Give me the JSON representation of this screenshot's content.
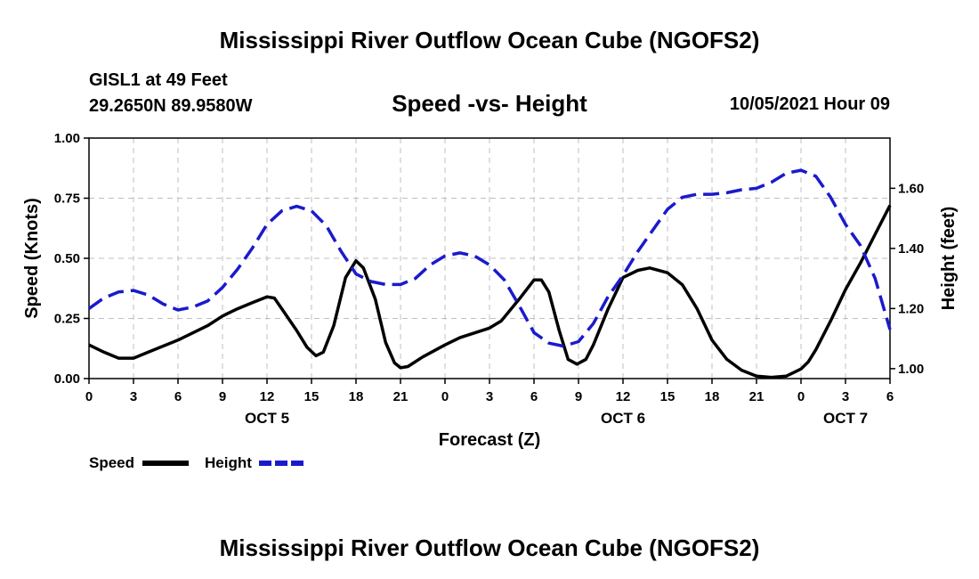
{
  "header": {
    "title": "Mississippi River Outflow Ocean Cube (NGOFS2)",
    "station_name": "GISL1 at 49 Feet",
    "station_coords": "29.2650N  89.9580W",
    "chart_subtitle": "Speed -vs- Height",
    "timestamp": "10/05/2021 Hour 09"
  },
  "footer": {
    "title": "Mississippi River Outflow Ocean Cube (NGOFS2)"
  },
  "colors": {
    "speed": "#000000",
    "height": "#1a1acc",
    "grid": "#bfbfbf"
  },
  "chart_data": {
    "type": "line",
    "title": "Speed -vs- Height",
    "xlabel": "Forecast (Z)",
    "ylabel_left": "Speed (Knots)",
    "ylabel_right": "Height (feet)",
    "x_range_hours": [
      0,
      54
    ],
    "x_tick_hours": [
      0,
      3,
      6,
      9,
      12,
      15,
      18,
      21,
      24,
      27,
      30,
      33,
      36,
      39,
      42,
      45,
      48,
      51,
      54
    ],
    "x_tick_labels": [
      "0",
      "3",
      "6",
      "9",
      "12",
      "15",
      "18",
      "21",
      "0",
      "3",
      "6",
      "9",
      "12",
      "15",
      "18",
      "21",
      "0",
      "3",
      "6"
    ],
    "date_labels": [
      {
        "hour": 12,
        "label": "OCT 5"
      },
      {
        "hour": 36,
        "label": "OCT 6"
      },
      {
        "hour": 51,
        "label": "OCT 7"
      }
    ],
    "left_axis": {
      "min": 0,
      "max": 1,
      "ticks": [
        0,
        0.25,
        0.5,
        0.75,
        1
      ],
      "tick_labels": [
        "0.00",
        "0.25",
        "0.50",
        "0.75",
        "1.00"
      ]
    },
    "right_axis": {
      "min": 0.967,
      "max": 1.767,
      "ticks": [
        1.0,
        1.2,
        1.4,
        1.6
      ],
      "tick_labels": [
        "1.00",
        "1.20",
        "1.40",
        "1.60"
      ]
    },
    "grid": true,
    "series": [
      {
        "name": "Speed",
        "axis": "left",
        "style": "solid",
        "points": [
          [
            0,
            0.14
          ],
          [
            1,
            0.11
          ],
          [
            2,
            0.085
          ],
          [
            3,
            0.085
          ],
          [
            4,
            0.11
          ],
          [
            6,
            0.16
          ],
          [
            8,
            0.22
          ],
          [
            9,
            0.26
          ],
          [
            10,
            0.29
          ],
          [
            11,
            0.315
          ],
          [
            12,
            0.34
          ],
          [
            12.5,
            0.335
          ],
          [
            13,
            0.29
          ],
          [
            14,
            0.2
          ],
          [
            14.7,
            0.13
          ],
          [
            15.3,
            0.095
          ],
          [
            15.8,
            0.11
          ],
          [
            16.5,
            0.22
          ],
          [
            17.3,
            0.42
          ],
          [
            18,
            0.49
          ],
          [
            18.5,
            0.46
          ],
          [
            19.3,
            0.33
          ],
          [
            20,
            0.15
          ],
          [
            20.6,
            0.065
          ],
          [
            21,
            0.045
          ],
          [
            21.5,
            0.05
          ],
          [
            22.5,
            0.09
          ],
          [
            24,
            0.14
          ],
          [
            25,
            0.17
          ],
          [
            27,
            0.21
          ],
          [
            27.8,
            0.24
          ],
          [
            29,
            0.33
          ],
          [
            30,
            0.41
          ],
          [
            30.5,
            0.41
          ],
          [
            31,
            0.36
          ],
          [
            31.7,
            0.2
          ],
          [
            32.3,
            0.08
          ],
          [
            32.9,
            0.06
          ],
          [
            33.5,
            0.08
          ],
          [
            34,
            0.14
          ],
          [
            35,
            0.29
          ],
          [
            36,
            0.42
          ],
          [
            37,
            0.45
          ],
          [
            37.8,
            0.46
          ],
          [
            39,
            0.44
          ],
          [
            40,
            0.39
          ],
          [
            41,
            0.29
          ],
          [
            42,
            0.16
          ],
          [
            43,
            0.08
          ],
          [
            44,
            0.035
          ],
          [
            45,
            0.01
          ],
          [
            46,
            0.005
          ],
          [
            47,
            0.01
          ],
          [
            48,
            0.04
          ],
          [
            48.5,
            0.07
          ],
          [
            49,
            0.12
          ],
          [
            50,
            0.24
          ],
          [
            51,
            0.37
          ],
          [
            52,
            0.48
          ],
          [
            53,
            0.6
          ],
          [
            54,
            0.72
          ]
        ]
      },
      {
        "name": "Height",
        "axis": "right",
        "style": "dashed",
        "points": [
          [
            0,
            1.2
          ],
          [
            1,
            1.235
          ],
          [
            2,
            1.255
          ],
          [
            3,
            1.26
          ],
          [
            4,
            1.245
          ],
          [
            5,
            1.215
          ],
          [
            6,
            1.195
          ],
          [
            7,
            1.205
          ],
          [
            8,
            1.225
          ],
          [
            9,
            1.27
          ],
          [
            10,
            1.33
          ],
          [
            11,
            1.4
          ],
          [
            12,
            1.48
          ],
          [
            13,
            1.525
          ],
          [
            14,
            1.54
          ],
          [
            15,
            1.525
          ],
          [
            16,
            1.475
          ],
          [
            17,
            1.39
          ],
          [
            18,
            1.315
          ],
          [
            19,
            1.29
          ],
          [
            20,
            1.28
          ],
          [
            21,
            1.28
          ],
          [
            22,
            1.3
          ],
          [
            23,
            1.345
          ],
          [
            24,
            1.375
          ],
          [
            25,
            1.385
          ],
          [
            26,
            1.375
          ],
          [
            27,
            1.345
          ],
          [
            28,
            1.295
          ],
          [
            29,
            1.21
          ],
          [
            30,
            1.12
          ],
          [
            31,
            1.085
          ],
          [
            32,
            1.075
          ],
          [
            33,
            1.09
          ],
          [
            34,
            1.15
          ],
          [
            35,
            1.24
          ],
          [
            36,
            1.31
          ],
          [
            37,
            1.39
          ],
          [
            38,
            1.46
          ],
          [
            39,
            1.53
          ],
          [
            40,
            1.57
          ],
          [
            41,
            1.58
          ],
          [
            42,
            1.58
          ],
          [
            43,
            1.585
          ],
          [
            44,
            1.595
          ],
          [
            45,
            1.6
          ],
          [
            46,
            1.62
          ],
          [
            47,
            1.65
          ],
          [
            48,
            1.66
          ],
          [
            49,
            1.64
          ],
          [
            50,
            1.57
          ],
          [
            51,
            1.48
          ],
          [
            52,
            1.41
          ],
          [
            53,
            1.3
          ],
          [
            54,
            1.13
          ]
        ]
      }
    ],
    "legend": {
      "placement": "bottom-left",
      "entries": [
        {
          "label": "Speed",
          "series": "Speed"
        },
        {
          "label": "Height",
          "series": "Height"
        }
      ]
    }
  }
}
